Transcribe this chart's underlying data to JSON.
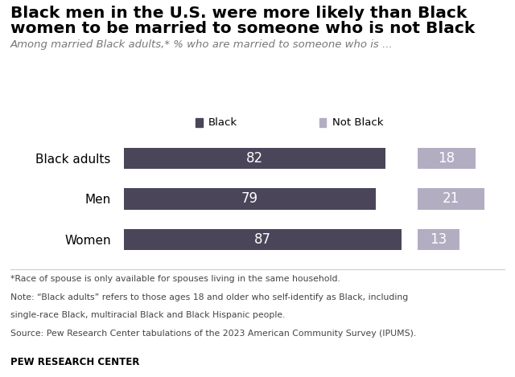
{
  "title_line1": "Black men in the U.S. were more likely than Black",
  "title_line2": "women to be married to someone who is not Black",
  "subtitle": "Among married Black adults,* % who are married to someone who is ...",
  "categories": [
    "Black adults",
    "Men",
    "Women"
  ],
  "black_values": [
    82,
    79,
    87
  ],
  "not_black_values": [
    18,
    21,
    13
  ],
  "black_color": "#4a4558",
  "not_black_color": "#b3adc2",
  "footnote1": "*Race of spouse is only available for spouses living in the same household.",
  "footnote2": "Note: “Black adults” refers to those ages 18 and older who self-identify as Black, including",
  "footnote3": "single-race Black, multiracial Black and Black Hispanic people.",
  "footnote4": "Source: Pew Research Center tabulations of the 2023 American Community Survey (IPUMS).",
  "source_label": "PEW RESEARCH CENTER",
  "legend_black": "Black",
  "legend_not_black": "Not Black",
  "title_fontsize": 14.5,
  "subtitle_fontsize": 9.5,
  "bar_label_fontsize": 12,
  "footnote_fontsize": 7.8,
  "source_fontsize": 8.5,
  "legend_fontsize": 9.5,
  "ytick_fontsize": 11
}
